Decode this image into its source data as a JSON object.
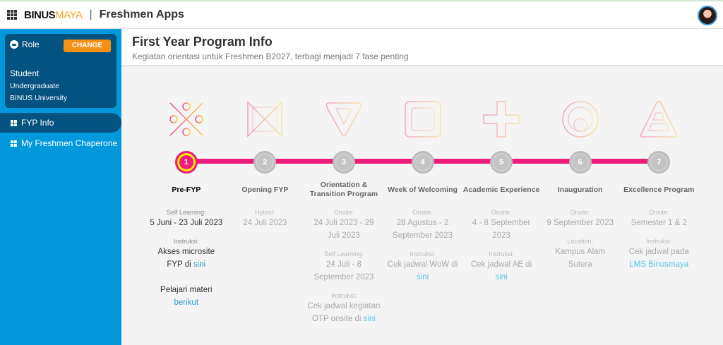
{
  "header": {
    "logo_main": "BINUS",
    "logo_accent": "MAYA",
    "separator": "|",
    "app_title": "Freshmen Apps"
  },
  "sidebar": {
    "role_label": "Role",
    "change_label": "CHANGE",
    "role": "Student",
    "level": "Undergraduate",
    "institution": "BINUS University",
    "items": [
      {
        "label": "FYP Info",
        "active": true
      },
      {
        "label": "My Freshmen Chaperone",
        "active": false
      }
    ]
  },
  "main": {
    "title": "First Year Program Info",
    "subtitle": "Kegiatan orientasi untuk Freshmen B2027, terbagi menjadi 7 fase penting"
  },
  "colors": {
    "accent": "#ee1d7a",
    "active_ring": "#ffef00",
    "link": "#2b9ad8",
    "sidebar": "#0199dc",
    "rolebox": "#03527f",
    "change": "#f39016"
  },
  "phases": [
    {
      "number": "1",
      "name": "Pre-FYP",
      "icon": "x-circles-icon",
      "active": true,
      "sections": [
        {
          "label": "Self Learning:",
          "text": "5 Juni - 23 Juli 2023",
          "link": ""
        },
        {
          "label": "Instruksi:",
          "text": "Akses microsite FYP di ",
          "link": "sini"
        },
        {
          "label": "",
          "text": "Pelajari materi ",
          "link": "berikut"
        }
      ]
    },
    {
      "number": "2",
      "name": "Opening FYP",
      "icon": "bowtie-icon",
      "active": false,
      "sections": [
        {
          "label": "Hybrid:",
          "text": "24 Juli 2023",
          "link": ""
        }
      ]
    },
    {
      "number": "3",
      "name": "Orientation & Transition Program",
      "icon": "triangle-down-icon",
      "active": false,
      "sections": [
        {
          "label": "Onsite:",
          "text": "24 Juli 2023 - 29 Juli 2023",
          "link": ""
        },
        {
          "label": "Self Learning:",
          "text": "24 Juli - 8 September 2023",
          "link": ""
        },
        {
          "label": "Instruksi:",
          "text": "Cek jadwal kegiatan OTP onsite di ",
          "link": "sini"
        }
      ]
    },
    {
      "number": "4",
      "name": "Week of Welcoming",
      "icon": "grid-square-icon",
      "active": false,
      "sections": [
        {
          "label": "Onsite:",
          "text": "28 Agustus - 2 September 2023",
          "link": ""
        },
        {
          "label": "Instruksi:",
          "text": "Cek jadwal WoW di ",
          "link": "sini"
        }
      ]
    },
    {
      "number": "5",
      "name": "Academic Experience",
      "icon": "plus-icon",
      "active": false,
      "sections": [
        {
          "label": "Onsite:",
          "text": "4 - 8 September 2023",
          "link": ""
        },
        {
          "label": "Instruksi:",
          "text": "Cek jadwal AE di ",
          "link": "sini"
        }
      ]
    },
    {
      "number": "6",
      "name": "Inauguration",
      "icon": "nested-circles-icon",
      "active": false,
      "sections": [
        {
          "label": "Onsite:",
          "text": "9 September 2023",
          "link": ""
        },
        {
          "label": "Location:",
          "text": "Kampus Alam Sutera",
          "link": ""
        }
      ]
    },
    {
      "number": "7",
      "name": "Excellence Program",
      "icon": "pyramid-icon",
      "active": false,
      "sections": [
        {
          "label": "Onsite:",
          "text": "Semester 1 & 2",
          "link": ""
        },
        {
          "label": "Instruksi:",
          "text": "Cek jadwal pada ",
          "link": "LMS Binusmaya"
        }
      ]
    }
  ]
}
